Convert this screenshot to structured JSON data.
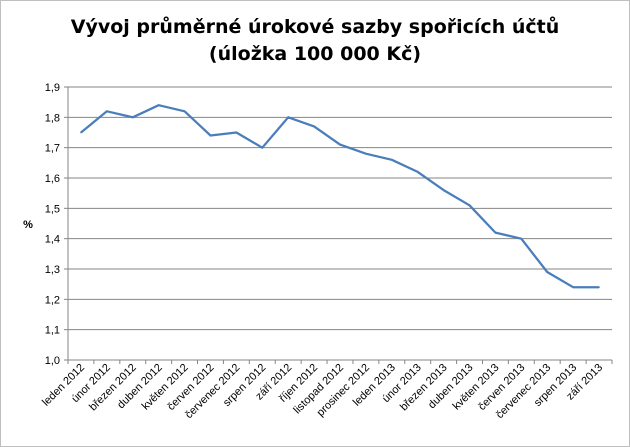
{
  "chart_data": {
    "type": "line",
    "title_line1": "Vývoj průměrné úrokové sazby spořicích účtů",
    "title_line2": "(úložka 100 000 Kč)",
    "xlabel": "",
    "ylabel": "%",
    "ylim": [
      1.0,
      1.9
    ],
    "yticks": [
      "1,0",
      "1,1",
      "1,2",
      "1,3",
      "1,4",
      "1,5",
      "1,6",
      "1,7",
      "1,8",
      "1,9"
    ],
    "grid": true,
    "legend": "none",
    "categories": [
      "leden 2012",
      "únor 2012",
      "březen 2012",
      "duben 2012",
      "květen 2012",
      "červen 2012",
      "červenec 2012",
      "srpen 2012",
      "září 2012",
      "říjen 2012",
      "listopad 2012",
      "prosinec 2012",
      "leden 2013",
      "únor 2013",
      "březen 2013",
      "duben 2013",
      "květen 2013",
      "červen 2013",
      "červenec 2013",
      "srpen 2013",
      "září 2013"
    ],
    "series": [
      {
        "values": [
          1.75,
          1.82,
          1.8,
          1.84,
          1.82,
          1.74,
          1.75,
          1.7,
          1.8,
          1.77,
          1.71,
          1.68,
          1.66,
          1.62,
          1.56,
          1.51,
          1.42,
          1.4,
          1.29,
          1.24,
          1.24
        ],
        "color": "#4a7ebb"
      }
    ]
  }
}
